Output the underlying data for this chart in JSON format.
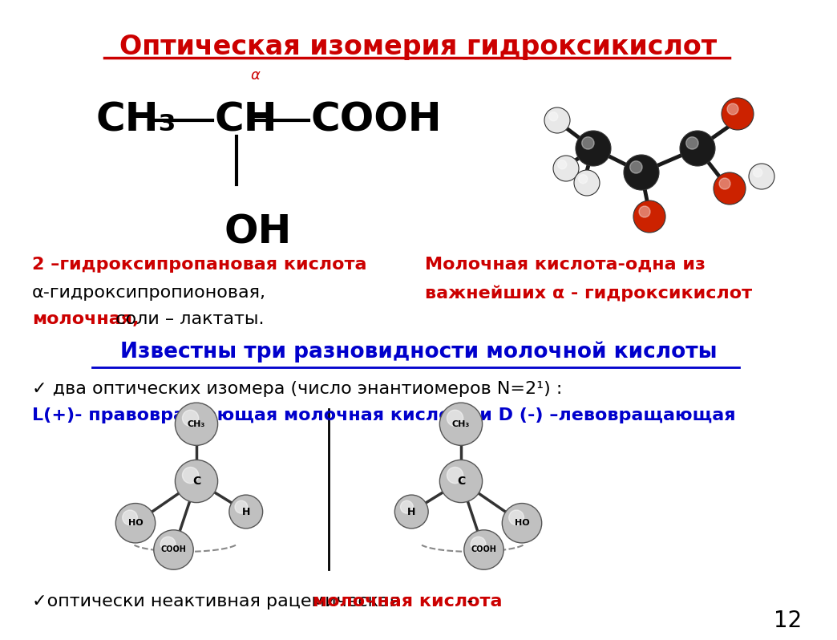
{
  "title": "Оптическая изомерия гидроксикислот",
  "bg_color": "#ffffff",
  "title_color": "#cc0000",
  "title_fontsize": 24,
  "alpha_label": "α",
  "formula_ch3": "CH₃",
  "formula_ch": "CH",
  "formula_cooh": "COOH",
  "formula_oh": "OH",
  "text1_bold_red": "2 –гидроксипропановая кислота",
  "text2_line1": "α-гидроксипропионовая,",
  "text2_line2_red": "молочная,",
  "text2_line2_black": "  соли – лактаты.",
  "text3_red1": "Молочная кислота-одна из",
  "text3_red2": "важнейших α - гидроксикислот",
  "underline_text": "Известны три разновидности молочной кислоты",
  "bullet_line1": "✓ два оптических изомера (число энантиомеров N=2¹) :",
  "bullet_line2_blue": "L(+)- правовращающая молочная кислота и D (-) –левовращающая",
  "last_line_black1": "✓оптически неактивная рацемическая ",
  "last_line_red": "молочная кислота",
  "last_line_black2": " -",
  "page_num": "12"
}
